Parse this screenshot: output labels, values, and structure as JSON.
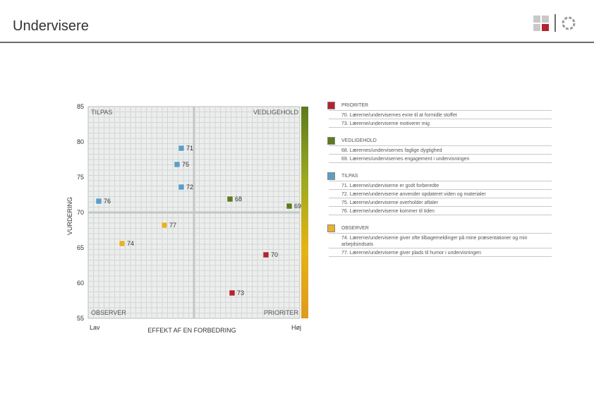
{
  "page": {
    "title": "Undervisere"
  },
  "colors": {
    "prioriter": "#b3242e",
    "vedligehold": "#5c7a1e",
    "tilpas": "#5b9ec6",
    "observer": "#e7b12a"
  },
  "chart_data": {
    "type": "scatter",
    "title": "",
    "xlabel": "EFFEKT AF EN FORBEDRING",
    "ylabel": "VURDERING",
    "x_tick_labels": {
      "low": "Lav",
      "high": "Høj"
    },
    "y_ticks": [
      55,
      60,
      65,
      70,
      75,
      80,
      85
    ],
    "ylim": [
      55,
      85
    ],
    "xlim": [
      0,
      10
    ],
    "x_divider": 5,
    "y_divider": 70,
    "grid": true,
    "quadrant_labels": {
      "top_left": "TILPAS",
      "top_right": "VEDLIGEHOLD",
      "bottom_left": "OBSERVER",
      "bottom_right": "PRIORITER"
    },
    "side_gradient": [
      "#5c7a1e",
      "#9aa81f",
      "#e3b414",
      "#e09a1d"
    ],
    "points": [
      {
        "label": "71",
        "x": 4.4,
        "y": 79.1,
        "group": "tilpas"
      },
      {
        "label": "75",
        "x": 4.2,
        "y": 76.8,
        "group": "tilpas"
      },
      {
        "label": "72",
        "x": 4.4,
        "y": 73.6,
        "group": "tilpas"
      },
      {
        "label": "76",
        "x": 0.5,
        "y": 71.6,
        "group": "tilpas"
      },
      {
        "label": "68",
        "x": 6.7,
        "y": 71.9,
        "group": "vedligehold"
      },
      {
        "label": "69",
        "x": 9.5,
        "y": 70.9,
        "group": "vedligehold"
      },
      {
        "label": "77",
        "x": 3.6,
        "y": 68.2,
        "group": "observer"
      },
      {
        "label": "74",
        "x": 1.6,
        "y": 65.6,
        "group": "observer"
      },
      {
        "label": "70",
        "x": 8.4,
        "y": 64.0,
        "group": "prioriter"
      },
      {
        "label": "73",
        "x": 6.8,
        "y": 58.6,
        "group": "prioriter"
      }
    ]
  },
  "legend": {
    "sections": [
      {
        "key": "prioriter",
        "title": "PRIORITER",
        "items": [
          "70. Lærerne/undervisernes evne til at formidle stoffet",
          "73. Lærerne/underviserne motiverer mig"
        ]
      },
      {
        "key": "vedligehold",
        "title": "VEDLIGEHOLD",
        "items": [
          "68. Lærernes/undervisernes faglige dygtighed",
          "69. Lærernes/undervisernes engagement i undervisningen"
        ]
      },
      {
        "key": "tilpas",
        "title": "TILPAS",
        "items": [
          "71. Lærerne/underviserne er godt forberedte",
          "72. Lærerne/underviserne anvender opdateret viden og materialer",
          "75. Lærerne/underviserne overholder aftaler",
          "76. Lærerne/underviserne kommer til tiden"
        ]
      },
      {
        "key": "observer",
        "title": "OBSERVER",
        "items": [
          "74. Lærerne/underviserne giver ofte tilbagemeldinger på mine præsentationer og min arbejdsindsats",
          "77. Lærerne/underviserne giver plads til humor i undervisningen"
        ]
      }
    ]
  }
}
